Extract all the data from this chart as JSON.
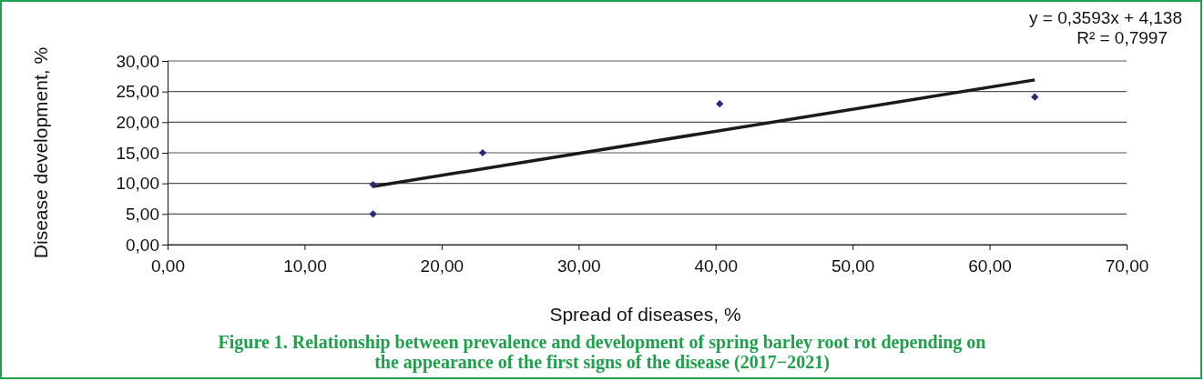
{
  "chart_data": {
    "type": "scatter",
    "title": "Figure 1. Relationship between prevalence and development of spring barley root rot depending on the appearance of the first signs of the disease (2017−2021)",
    "xlabel": "Spread of diseases, %",
    "ylabel": "Disease development, %",
    "annotations": [
      "y = 0,3593x + 4,138",
      "R² = 0,7997"
    ],
    "series": [
      {
        "type": "scatter",
        "color": "#262c78",
        "marker": "diamond",
        "x": [
          15,
          15,
          23,
          40.3,
          63.3
        ],
        "values": [
          9.8,
          5,
          15,
          23,
          24.1
        ]
      },
      {
        "type": "line",
        "color": "#1a1a1a",
        "x": [
          15,
          63.3
        ],
        "values": [
          9.5,
          26.9
        ]
      }
    ],
    "grid": "y",
    "line_style": "solid",
    "xlim": [
      0,
      70
    ],
    "xticks": [
      {
        "value": 0,
        "label": "0,00"
      },
      {
        "value": 10,
        "label": "10,00"
      },
      {
        "value": 20,
        "label": "20,00"
      },
      {
        "value": 30,
        "label": "30,00"
      },
      {
        "value": 40,
        "label": "40,00"
      },
      {
        "value": 50,
        "label": "50,00"
      },
      {
        "value": 60,
        "label": "60,00"
      },
      {
        "value": 70,
        "label": "70,00"
      }
    ],
    "ylim": [
      0,
      30
    ],
    "yticks": [
      {
        "value": 0,
        "label": "0,00"
      },
      {
        "value": 5,
        "label": "5,00"
      },
      {
        "value": 10,
        "label": "10,00"
      },
      {
        "value": 15,
        "label": "15,00"
      },
      {
        "value": 20,
        "label": "20,00"
      },
      {
        "value": 25,
        "label": "25,00"
      },
      {
        "value": 30,
        "label": "30,00"
      }
    ]
  }
}
